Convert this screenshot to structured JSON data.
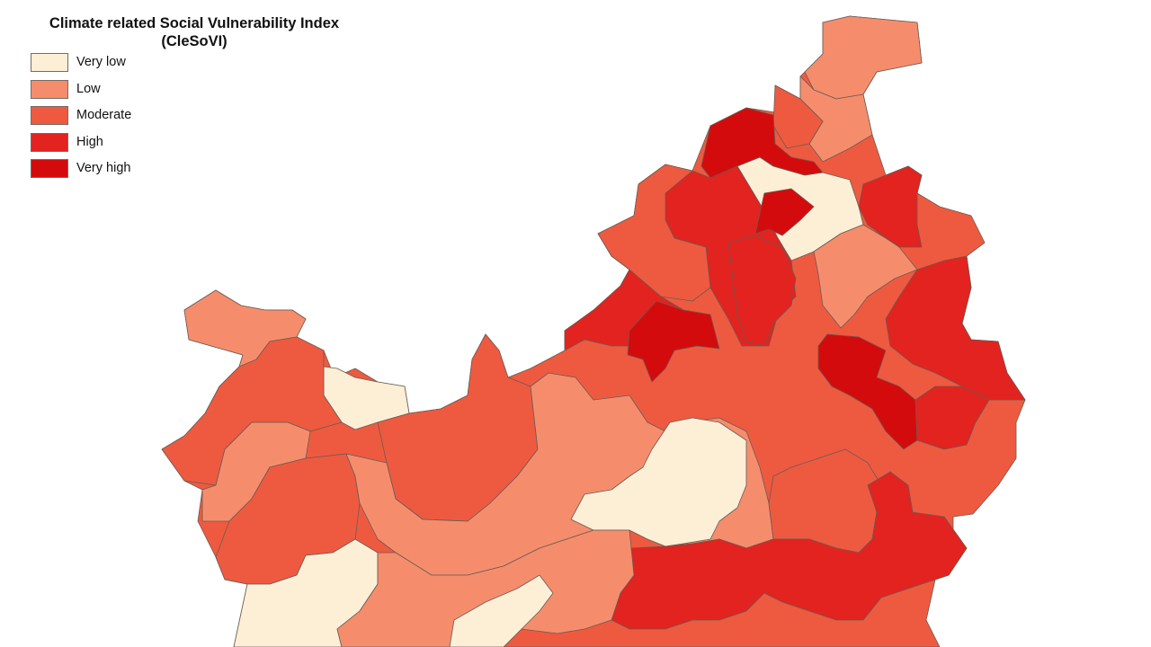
{
  "title": {
    "line1": "Climate related Social Vulnerability Index",
    "line2": "(CleSoVI)"
  },
  "legend": [
    {
      "label": "Very low",
      "color": "#fdeed6"
    },
    {
      "label": "Low",
      "color": "#f58d6d"
    },
    {
      "label": "Moderate",
      "color": "#ee5a40"
    },
    {
      "label": "High",
      "color": "#e2231f"
    },
    {
      "label": "Very high",
      "color": "#d40b0c"
    }
  ],
  "map_units": [
    {
      "name": "north-tip",
      "class": 1
    },
    {
      "name": "ne-strip",
      "class": 1
    },
    {
      "name": "north-moderate-a",
      "class": 2
    },
    {
      "name": "north-veryhigh",
      "class": 4
    },
    {
      "name": "north-verylow",
      "class": 0
    },
    {
      "name": "north-high-a",
      "class": 3
    },
    {
      "name": "north-veryhigh-b",
      "class": 4
    },
    {
      "name": "ne-high",
      "class": 3
    },
    {
      "name": "nw-moderate",
      "class": 2
    },
    {
      "name": "central-high-strip",
      "class": 3
    },
    {
      "name": "central-low-a",
      "class": 1
    },
    {
      "name": "east-high-a",
      "class": 3
    },
    {
      "name": "west-high",
      "class": 3
    },
    {
      "name": "west-veryhigh",
      "class": 4
    },
    {
      "name": "east-veryhigh",
      "class": 4
    },
    {
      "name": "east-high-b",
      "class": 3
    },
    {
      "name": "far-west-low",
      "class": 1
    },
    {
      "name": "west-verylow",
      "class": 0
    },
    {
      "name": "west-moderate-a",
      "class": 2
    },
    {
      "name": "west-low-b",
      "class": 1
    },
    {
      "name": "west-moderate-b",
      "class": 2
    },
    {
      "name": "center-moderate",
      "class": 2
    },
    {
      "name": "center-low",
      "class": 1
    },
    {
      "name": "center-verylow",
      "class": 0
    },
    {
      "name": "se-moderate",
      "class": 2
    },
    {
      "name": "south-high",
      "class": 3
    },
    {
      "name": "south-verylow-left",
      "class": 0
    },
    {
      "name": "south-low",
      "class": 1
    },
    {
      "name": "south-verylow-b",
      "class": 0
    }
  ]
}
